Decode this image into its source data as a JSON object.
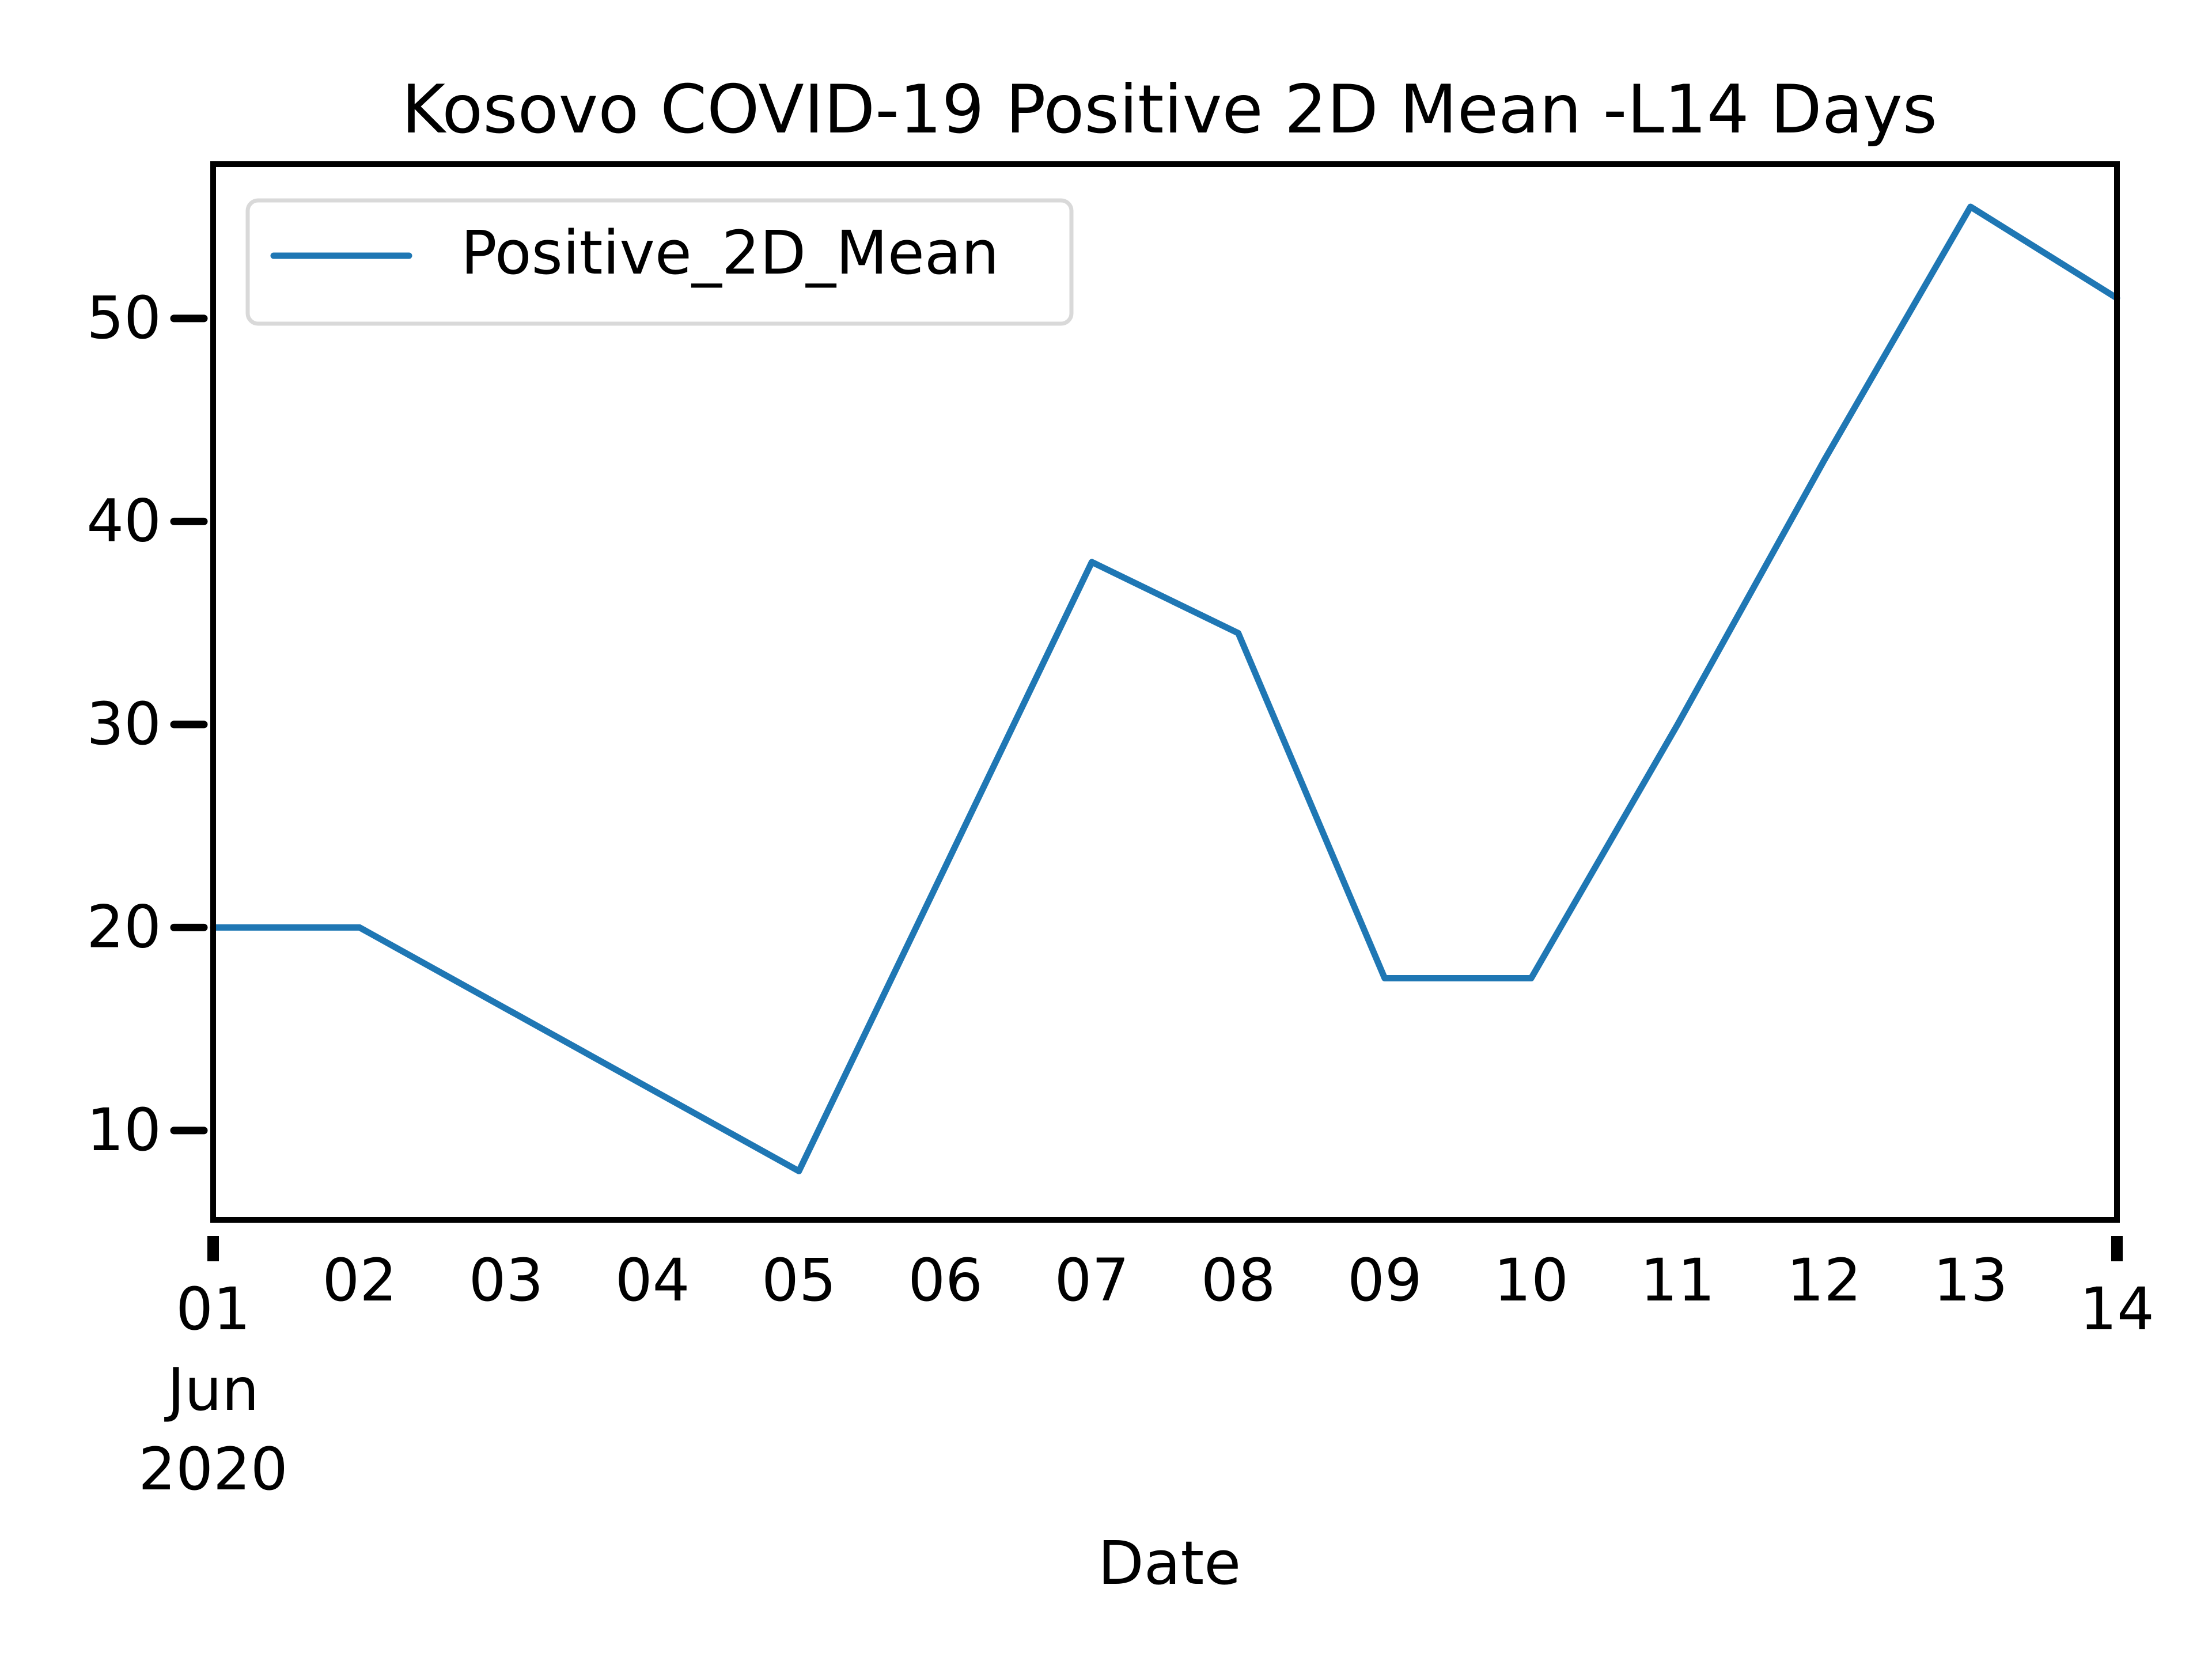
{
  "chart_data": {
    "type": "line",
    "title": "Kosovo COVID-19 Positive 2D Mean -L14 Days",
    "xlabel": "Date",
    "ylabel": "",
    "x_ticks": [
      {
        "value": "2020-06-01",
        "label": "01",
        "sublabel_1": "Jun",
        "sublabel_2": "2020",
        "major": true
      },
      {
        "value": "2020-06-02",
        "label": "02",
        "major": false
      },
      {
        "value": "2020-06-03",
        "label": "03",
        "major": false
      },
      {
        "value": "2020-06-04",
        "label": "04",
        "major": false
      },
      {
        "value": "2020-06-05",
        "label": "05",
        "major": false
      },
      {
        "value": "2020-06-06",
        "label": "06",
        "major": false
      },
      {
        "value": "2020-06-07",
        "label": "07",
        "major": false
      },
      {
        "value": "2020-06-08",
        "label": "08",
        "major": false
      },
      {
        "value": "2020-06-09",
        "label": "09",
        "major": false
      },
      {
        "value": "2020-06-10",
        "label": "10",
        "major": false
      },
      {
        "value": "2020-06-11",
        "label": "11",
        "major": false
      },
      {
        "value": "2020-06-12",
        "label": "12",
        "major": false
      },
      {
        "value": "2020-06-13",
        "label": "13",
        "major": false
      },
      {
        "value": "2020-06-14",
        "label": "14",
        "major": true
      }
    ],
    "y_ticks": [
      10,
      20,
      30,
      40,
      50
    ],
    "xlim": [
      "2020-06-01",
      "2020-06-14"
    ],
    "ylim": [
      5.6,
      57.6
    ],
    "grid": false,
    "legend_position": "top-left",
    "series": [
      {
        "name": "Positive_2D_Mean",
        "color": "#1f77b4",
        "x": [
          "2020-06-01",
          "2020-06-02",
          "2020-06-03",
          "2020-06-04",
          "2020-06-05",
          "2020-06-06",
          "2020-06-07",
          "2020-06-08",
          "2020-06-09",
          "2020-06-10",
          "2020-06-11",
          "2020-06-12",
          "2020-06-13",
          "2020-06-14"
        ],
        "values": [
          20.0,
          20.0,
          16.0,
          12.0,
          8.0,
          23.0,
          38.0,
          34.5,
          17.5,
          17.5,
          30.0,
          43.0,
          55.5,
          51.0
        ]
      }
    ]
  }
}
